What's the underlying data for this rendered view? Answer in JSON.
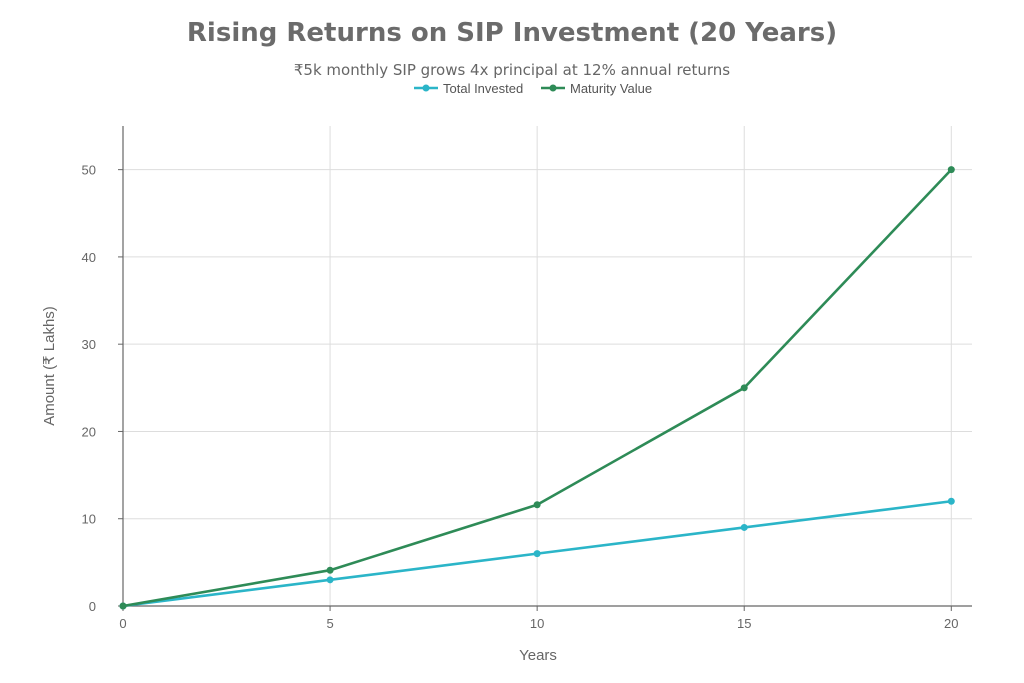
{
  "chart_data": {
    "type": "line",
    "title": "Rising Returns on SIP Investment (20 Years)",
    "subtitle": "₹5k monthly SIP grows 4x principal at 12% annual returns",
    "xlabel": "Years",
    "ylabel": "Amount (₹ Lakhs)",
    "x": [
      0,
      5,
      10,
      15,
      20
    ],
    "xlim": [
      0,
      20.5
    ],
    "ylim": [
      0,
      55
    ],
    "xticks": [
      0,
      5,
      10,
      15,
      20
    ],
    "yticks": [
      0,
      10,
      20,
      30,
      40,
      50
    ],
    "grid": true,
    "legend_position": "top-center",
    "series": [
      {
        "name": "Total Invested",
        "color": "#2bb5c8",
        "values": [
          0,
          3,
          6,
          9,
          12
        ]
      },
      {
        "name": "Maturity Value",
        "color": "#2e8b57",
        "values": [
          0,
          4.1,
          11.6,
          25,
          50
        ]
      }
    ]
  }
}
